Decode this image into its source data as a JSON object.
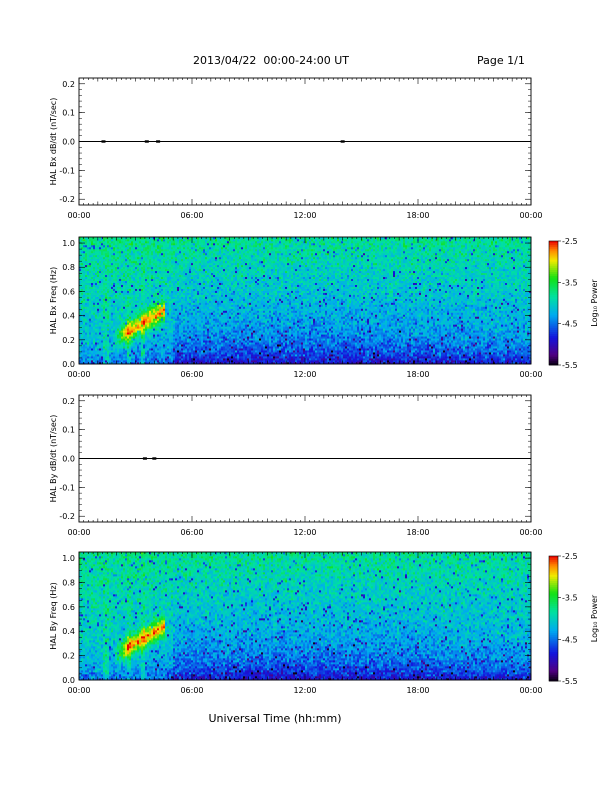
{
  "header": {
    "title": "2013/04/22  00:00-24:00 UT",
    "page": "Page 1/1"
  },
  "footer": {
    "xlabel": "Universal Time (hh:mm)"
  },
  "chart_data": [
    {
      "type": "line",
      "ylabel": "HAL Bx dB/dt (nT/sec)",
      "ylim": [
        -0.22,
        0.22
      ],
      "yticks": [
        "0.2",
        "0.1",
        "0.0",
        "-0.1",
        "-0.2"
      ],
      "xlim": [
        "00:00",
        "24:00"
      ],
      "xticks": [
        "00:00",
        "06:00",
        "12:00",
        "18:00",
        "00:00"
      ],
      "series": [
        {
          "values": [
            [
              0.0,
              0.0
            ],
            [
              1.3,
              0.0
            ],
            [
              3.6,
              0.0
            ],
            [
              4.2,
              0.0
            ],
            [
              14.0,
              0.0
            ],
            [
              24.0,
              0.0
            ]
          ]
        }
      ]
    },
    {
      "type": "heatmap",
      "ylabel": "HAL Bx Freq (Hz)",
      "ylim": [
        0.0,
        1.05
      ],
      "yticks": [
        "1.0",
        "0.8",
        "0.6",
        "0.4",
        "0.2",
        "0.0"
      ],
      "xlim": [
        "00:00",
        "24:00"
      ],
      "xticks": [
        "00:00",
        "06:00",
        "12:00",
        "18:00",
        "00:00"
      ],
      "colorbar": {
        "label": "Log₁₀ Power",
        "range": [
          -5.5,
          -2.5
        ],
        "ticks": [
          "-2.5",
          "-3.5",
          "-4.5",
          "-5.5"
        ]
      }
    },
    {
      "type": "line",
      "ylabel": "HAL By dB/dt (nT/sec)",
      "ylim": [
        -0.22,
        0.22
      ],
      "yticks": [
        "0.2",
        "0.1",
        "0.0",
        "-0.1",
        "-0.2"
      ],
      "xlim": [
        "00:00",
        "24:00"
      ],
      "xticks": [
        "00:00",
        "06:00",
        "12:00",
        "18:00",
        "00:00"
      ],
      "series": [
        {
          "values": [
            [
              0.0,
              0.0
            ],
            [
              3.5,
              0.0
            ],
            [
              4.0,
              0.0
            ],
            [
              24.0,
              0.0
            ]
          ]
        }
      ]
    },
    {
      "type": "heatmap",
      "ylabel": "HAL By Freq (Hz)",
      "ylim": [
        0.0,
        1.05
      ],
      "yticks": [
        "1.0",
        "0.8",
        "0.6",
        "0.4",
        "0.2",
        "0.0"
      ],
      "xlim": [
        "00:00",
        "24:00"
      ],
      "xticks": [
        "00:00",
        "06:00",
        "12:00",
        "18:00",
        "00:00"
      ],
      "colorbar": {
        "label": "Log₁₀ Power",
        "range": [
          -5.5,
          -2.5
        ],
        "ticks": [
          "-2.5",
          "-3.5",
          "-4.5",
          "-5.5"
        ]
      }
    }
  ]
}
